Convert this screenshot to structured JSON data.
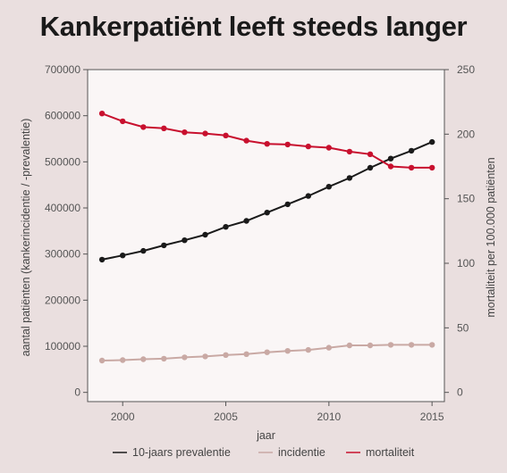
{
  "title": "Kankerpatiënt leeft steeds langer",
  "chart_data": {
    "type": "line",
    "xlabel": "jaar",
    "ylabel_left": "aantal patiënten (kankerincidentie / -prevalentie)",
    "ylabel_right": "mortaliteit per 100.000 patiënten",
    "x": [
      1999,
      2000,
      2001,
      2002,
      2003,
      2004,
      2005,
      2006,
      2007,
      2008,
      2009,
      2010,
      2011,
      2012,
      2013,
      2014,
      2015
    ],
    "xlim": [
      1998.3,
      2015.6
    ],
    "xticks": [
      2000,
      2005,
      2010,
      2015
    ],
    "ylim_left": [
      -20000,
      700000
    ],
    "yticks_left": [
      0,
      100000,
      200000,
      300000,
      400000,
      500000,
      600000,
      700000
    ],
    "ylim_right": [
      -7.14,
      250
    ],
    "yticks_right": [
      0,
      50,
      100,
      150,
      200,
      250
    ],
    "series": [
      {
        "name": "10-jaars prevalentie",
        "axis": "left",
        "color": "#1a1a1a",
        "values": [
          288000,
          297000,
          307000,
          319000,
          330000,
          342000,
          359000,
          372000,
          390000,
          408000,
          426000,
          446000,
          465000,
          487000,
          507000,
          524000,
          543000
        ]
      },
      {
        "name": "incidentie",
        "axis": "left",
        "color": "#c9a9a4",
        "values": [
          69000,
          70000,
          72000,
          73000,
          76000,
          78000,
          81000,
          83000,
          87000,
          90000,
          92000,
          97000,
          102000,
          102000,
          103000,
          103000,
          103000
        ]
      },
      {
        "name": "mortaliteit",
        "axis": "right",
        "color": "#c8102e",
        "values": [
          216,
          210,
          205.5,
          204.5,
          201.5,
          200.5,
          199,
          195,
          192.5,
          192,
          190.5,
          189.5,
          186.5,
          184.5,
          175,
          174,
          174
        ]
      }
    ],
    "legend_position": "bottom",
    "grid": false
  }
}
